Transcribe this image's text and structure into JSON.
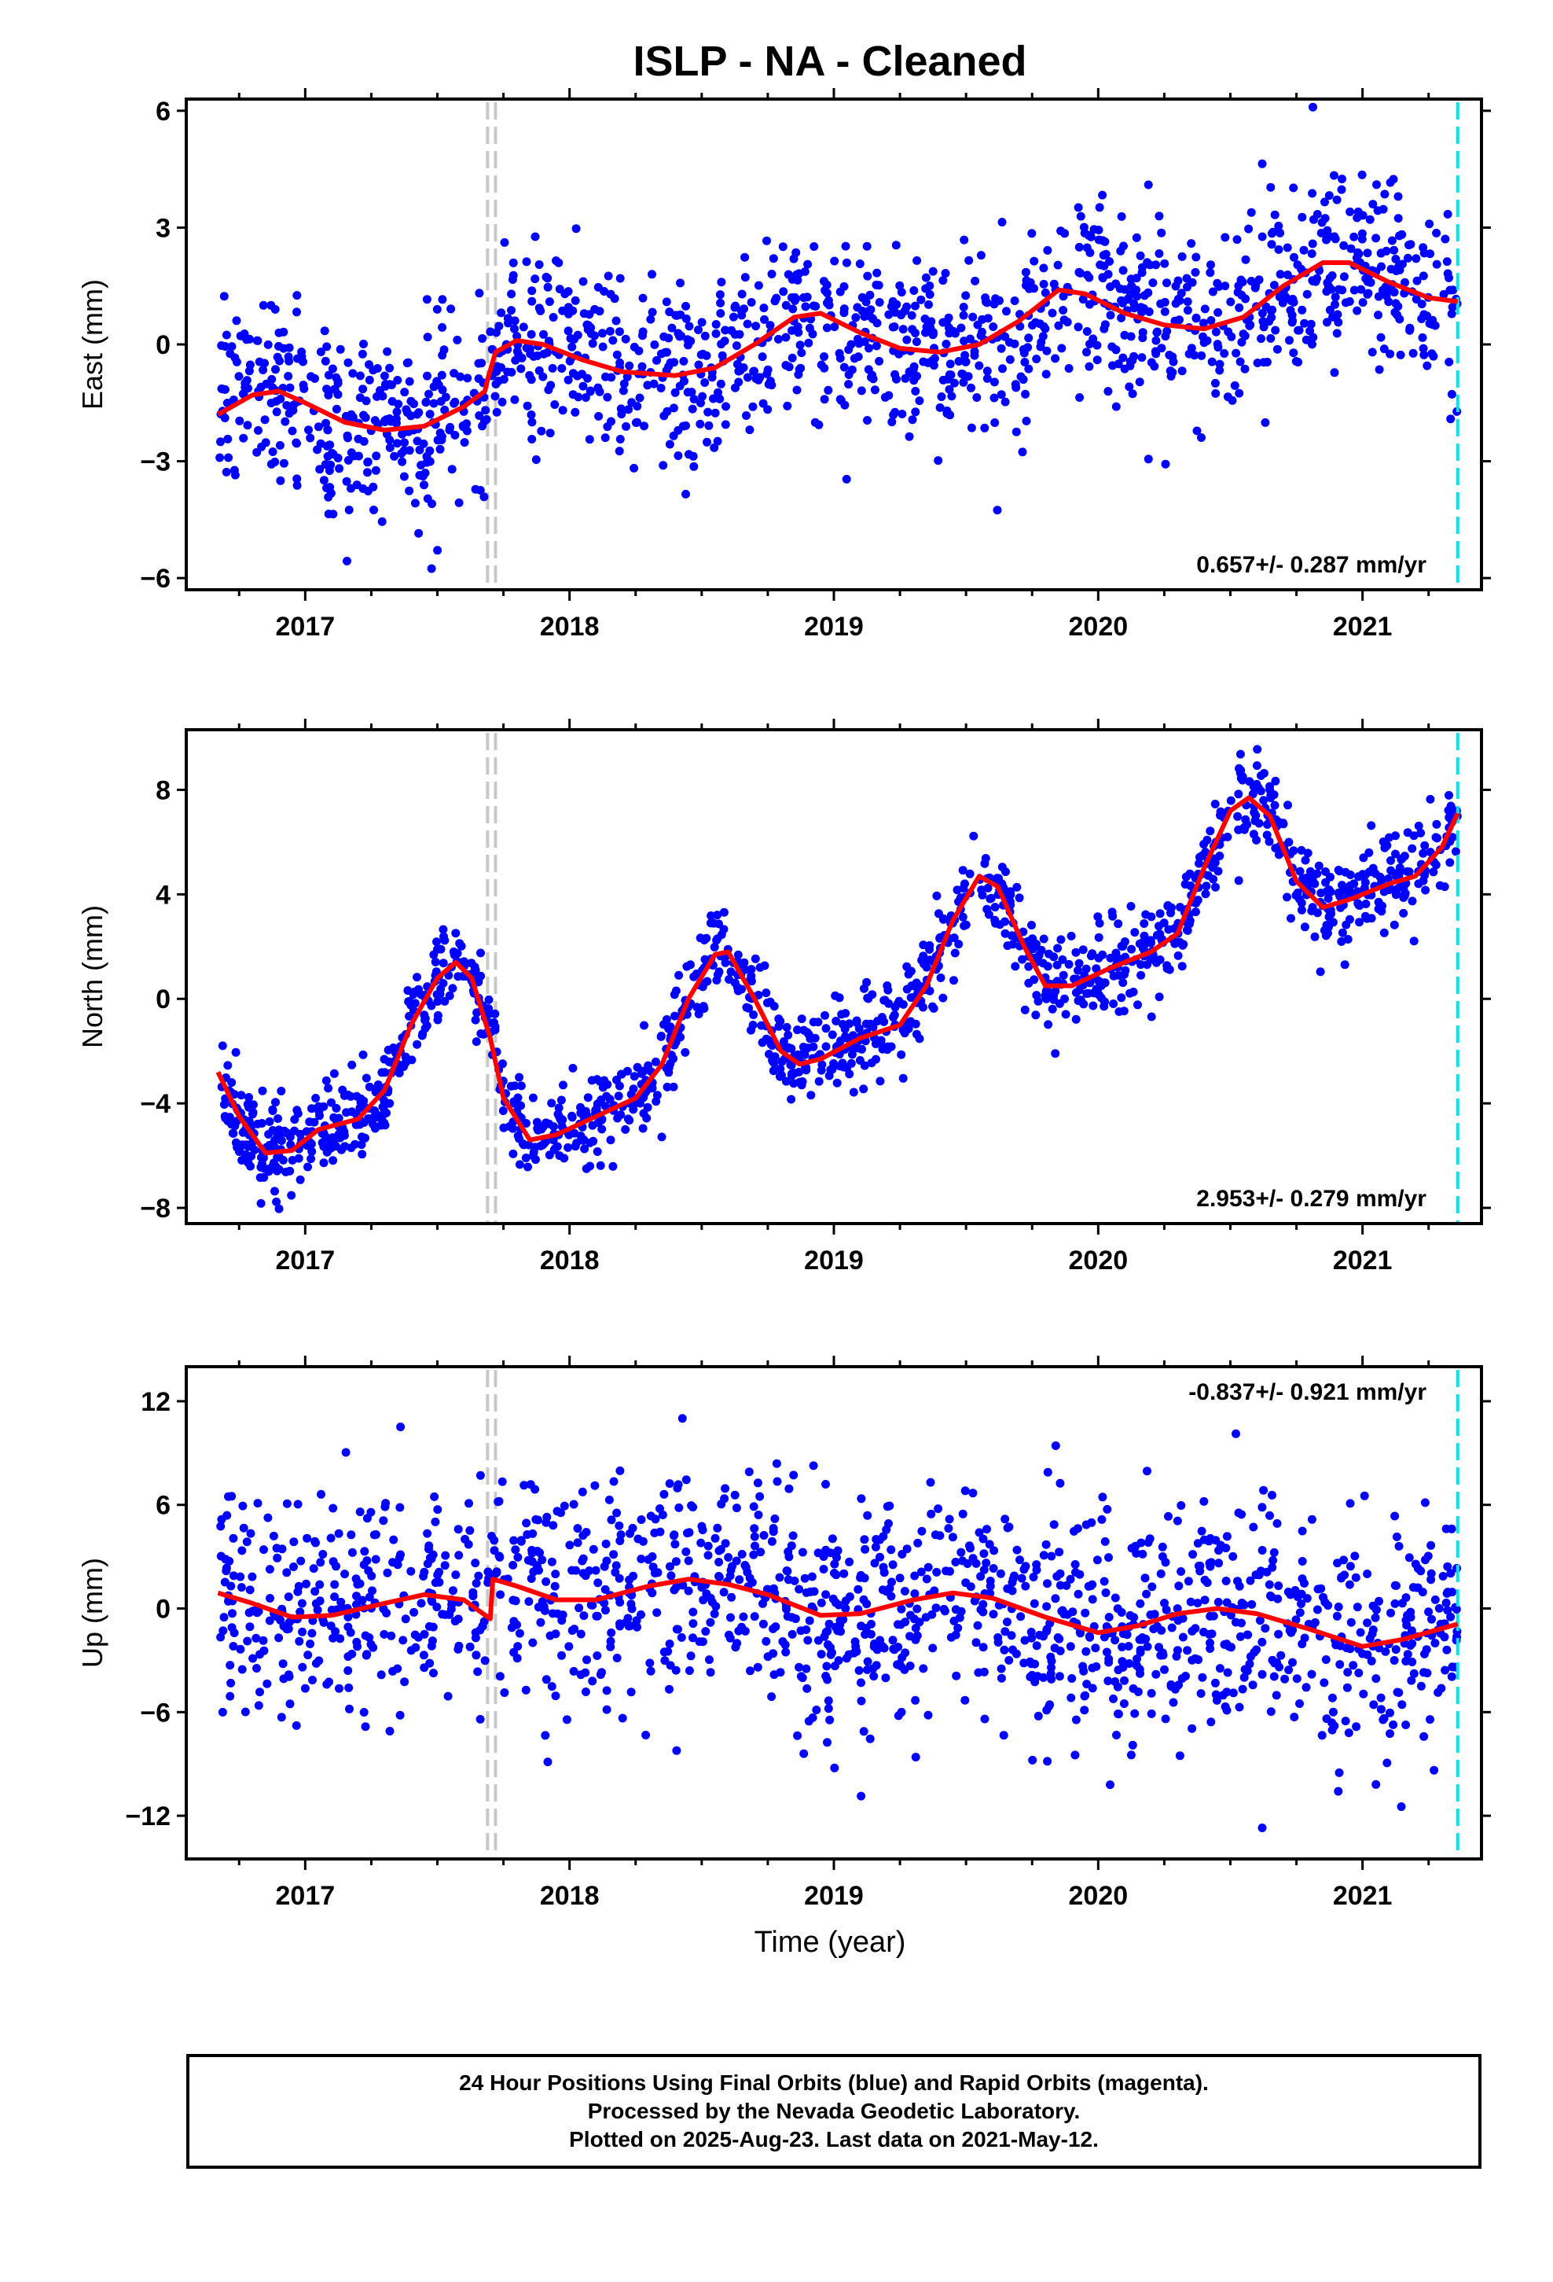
{
  "title": "ISLP  - NA - Cleaned",
  "xlabel": "Time (year)",
  "colors": {
    "final_orbits": "#0000ff",
    "fit": "#ff0000",
    "equipment_change": "#c8c8c8",
    "last_data": "#00e5ee"
  },
  "footer": {
    "line1": "24 Hour Positions Using Final Orbits (blue) and Rapid Orbits (magenta).",
    "line2": "Processed by the Nevada Geodetic Laboratory.",
    "line3": "Plotted on 2025-Aug-23. Last data on 2021-May-12."
  },
  "chart_data": [
    {
      "type": "scatter",
      "ylabel": "East (mm)",
      "rate_label": "0.657+/- 0.287 mm/yr",
      "rate_position": "bottom-right",
      "xlim": [
        2016.55,
        2021.45
      ],
      "ylim": [
        -6.3,
        6.3
      ],
      "yticks": [
        -6,
        -3,
        0,
        3,
        6
      ],
      "xticks": [
        2017,
        2018,
        2019,
        2020,
        2021
      ],
      "data_start": 2016.67,
      "data_end": 2021.36,
      "equipment_changes": [
        2017.69,
        2017.72
      ],
      "last_data_line": 2021.36,
      "model_curve": [
        [
          2016.67,
          -1.8
        ],
        [
          2016.8,
          -1.3
        ],
        [
          2016.9,
          -1.2
        ],
        [
          2017.0,
          -1.5
        ],
        [
          2017.15,
          -2.0
        ],
        [
          2017.3,
          -2.2
        ],
        [
          2017.45,
          -2.1
        ],
        [
          2017.6,
          -1.6
        ],
        [
          2017.68,
          -1.2
        ],
        [
          2017.69,
          -0.9
        ],
        [
          2017.72,
          -0.2
        ],
        [
          2017.8,
          0.1
        ],
        [
          2017.9,
          0.0
        ],
        [
          2018.05,
          -0.4
        ],
        [
          2018.2,
          -0.7
        ],
        [
          2018.4,
          -0.8
        ],
        [
          2018.55,
          -0.6
        ],
        [
          2018.7,
          0.0
        ],
        [
          2018.85,
          0.7
        ],
        [
          2018.95,
          0.8
        ],
        [
          2019.1,
          0.3
        ],
        [
          2019.25,
          -0.1
        ],
        [
          2019.4,
          -0.2
        ],
        [
          2019.55,
          0.0
        ],
        [
          2019.7,
          0.6
        ],
        [
          2019.85,
          1.4
        ],
        [
          2019.95,
          1.3
        ],
        [
          2020.1,
          0.8
        ],
        [
          2020.25,
          0.5
        ],
        [
          2020.4,
          0.4
        ],
        [
          2020.55,
          0.7
        ],
        [
          2020.7,
          1.5
        ],
        [
          2020.85,
          2.1
        ],
        [
          2020.95,
          2.1
        ],
        [
          2021.1,
          1.6
        ],
        [
          2021.25,
          1.2
        ],
        [
          2021.36,
          1.1
        ]
      ],
      "scatter": {
        "n": 1450,
        "noise": 1.2,
        "seed": 11
      }
    },
    {
      "type": "scatter",
      "ylabel": "North (mm)",
      "rate_label": "2.953+/- 0.279 mm/yr",
      "rate_position": "bottom-right",
      "xlim": [
        2016.55,
        2021.45
      ],
      "ylim": [
        -8.6,
        10.3
      ],
      "yticks": [
        -8,
        -4,
        0,
        4,
        8
      ],
      "xticks": [
        2017,
        2018,
        2019,
        2020,
        2021
      ],
      "data_start": 2016.67,
      "data_end": 2021.36,
      "equipment_changes": [
        2017.69,
        2017.72
      ],
      "last_data_line": 2021.36,
      "model_curve": [
        [
          2016.67,
          -2.8
        ],
        [
          2016.75,
          -4.5
        ],
        [
          2016.85,
          -5.9
        ],
        [
          2016.95,
          -5.8
        ],
        [
          2017.05,
          -5.0
        ],
        [
          2017.2,
          -4.6
        ],
        [
          2017.3,
          -3.5
        ],
        [
          2017.4,
          -1.0
        ],
        [
          2017.5,
          0.8
        ],
        [
          2017.57,
          1.4
        ],
        [
          2017.63,
          0.8
        ],
        [
          2017.7,
          -1.5
        ],
        [
          2017.75,
          -3.8
        ],
        [
          2017.85,
          -5.4
        ],
        [
          2017.95,
          -5.2
        ],
        [
          2018.1,
          -4.5
        ],
        [
          2018.25,
          -3.8
        ],
        [
          2018.35,
          -2.5
        ],
        [
          2018.45,
          0.0
        ],
        [
          2018.55,
          1.7
        ],
        [
          2018.6,
          1.8
        ],
        [
          2018.7,
          0.0
        ],
        [
          2018.8,
          -2.0
        ],
        [
          2018.87,
          -2.5
        ],
        [
          2018.95,
          -2.3
        ],
        [
          2019.1,
          -1.5
        ],
        [
          2019.25,
          -1.0
        ],
        [
          2019.35,
          0.5
        ],
        [
          2019.45,
          3.0
        ],
        [
          2019.55,
          4.7
        ],
        [
          2019.62,
          4.3
        ],
        [
          2019.72,
          2.0
        ],
        [
          2019.8,
          0.5
        ],
        [
          2019.9,
          0.5
        ],
        [
          2020.05,
          1.2
        ],
        [
          2020.2,
          1.8
        ],
        [
          2020.3,
          2.5
        ],
        [
          2020.4,
          5.0
        ],
        [
          2020.5,
          7.2
        ],
        [
          2020.57,
          7.7
        ],
        [
          2020.65,
          7.0
        ],
        [
          2020.75,
          4.5
        ],
        [
          2020.85,
          3.5
        ],
        [
          2020.95,
          3.8
        ],
        [
          2021.1,
          4.4
        ],
        [
          2021.2,
          4.7
        ],
        [
          2021.3,
          5.8
        ],
        [
          2021.36,
          7.1
        ]
      ],
      "scatter": {
        "n": 1450,
        "noise": 0.85,
        "seed": 23
      }
    },
    {
      "type": "scatter",
      "ylabel": "Up (mm)",
      "rate_label": "-0.837+/- 0.921 mm/yr",
      "rate_position": "top-right",
      "xlim": [
        2016.55,
        2021.45
      ],
      "ylim": [
        -14.5,
        14.0
      ],
      "yticks": [
        -12,
        -6,
        0,
        6,
        12
      ],
      "xticks": [
        2017,
        2018,
        2019,
        2020,
        2021
      ],
      "data_start": 2016.67,
      "data_end": 2021.36,
      "equipment_changes": [
        2017.69,
        2017.72
      ],
      "last_data_line": 2021.36,
      "model_curve": [
        [
          2016.67,
          0.9
        ],
        [
          2016.8,
          0.3
        ],
        [
          2016.95,
          -0.5
        ],
        [
          2017.1,
          -0.4
        ],
        [
          2017.3,
          0.3
        ],
        [
          2017.45,
          0.8
        ],
        [
          2017.6,
          0.5
        ],
        [
          2017.7,
          -0.6
        ],
        [
          2017.71,
          1.7
        ],
        [
          2017.8,
          1.3
        ],
        [
          2017.95,
          0.5
        ],
        [
          2018.1,
          0.5
        ],
        [
          2018.3,
          1.3
        ],
        [
          2018.45,
          1.7
        ],
        [
          2018.6,
          1.4
        ],
        [
          2018.75,
          0.8
        ],
        [
          2018.95,
          -0.4
        ],
        [
          2019.1,
          -0.3
        ],
        [
          2019.3,
          0.5
        ],
        [
          2019.45,
          0.9
        ],
        [
          2019.6,
          0.6
        ],
        [
          2019.8,
          -0.5
        ],
        [
          2020.0,
          -1.4
        ],
        [
          2020.15,
          -1.0
        ],
        [
          2020.3,
          -0.3
        ],
        [
          2020.45,
          0.0
        ],
        [
          2020.6,
          -0.3
        ],
        [
          2020.8,
          -1.2
        ],
        [
          2021.0,
          -2.2
        ],
        [
          2021.15,
          -1.8
        ],
        [
          2021.36,
          -0.9
        ]
      ],
      "scatter": {
        "n": 1450,
        "noise": 3.3,
        "seed": 37
      }
    }
  ]
}
